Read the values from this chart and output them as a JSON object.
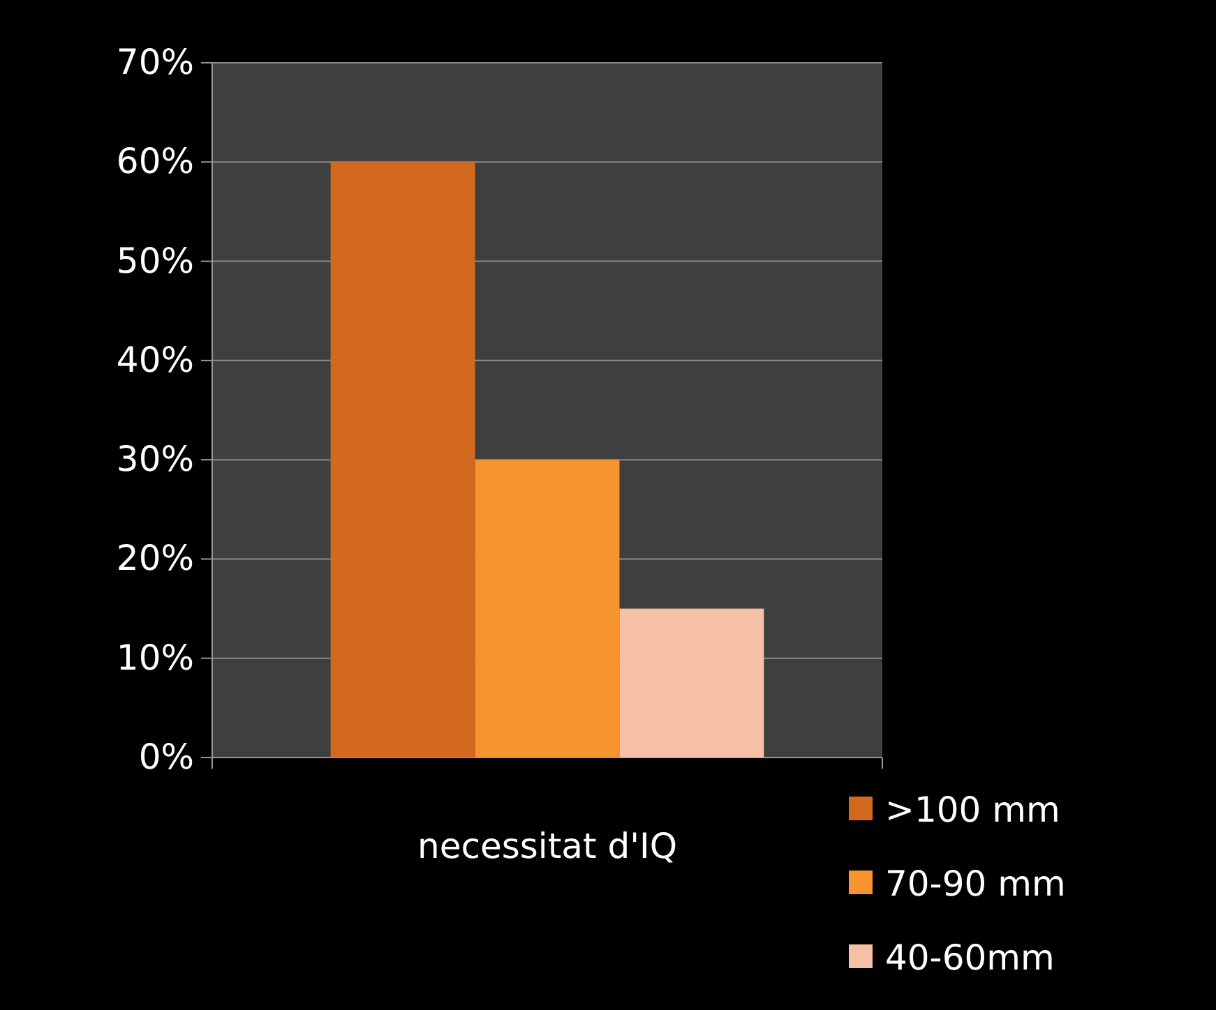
{
  "chart_data": {
    "type": "bar",
    "categories": [
      null,
      null,
      null
    ],
    "xlabel": "necessitat d'IQ",
    "series": [
      {
        "name": ">100 mm",
        "color": "#d2691e",
        "values": [
          60,
          null,
          null
        ]
      },
      {
        "name": "70-90 mm",
        "color": "#f7942d",
        "values": [
          null,
          30,
          null
        ]
      },
      {
        "name": "40-60mm",
        "color": "#f6c1a6",
        "values": [
          null,
          null,
          15
        ]
      }
    ],
    "ylim": [
      0,
      70
    ],
    "yticks": [
      {
        "value": 0,
        "label": "0%"
      },
      {
        "value": 10,
        "label": "10%"
      },
      {
        "value": 20,
        "label": "20%"
      },
      {
        "value": 30,
        "label": "30%"
      },
      {
        "value": 40,
        "label": "40%"
      },
      {
        "value": 50,
        "label": "50%"
      },
      {
        "value": 60,
        "label": "60%"
      },
      {
        "value": 70,
        "label": "70%"
      }
    ],
    "grid": "y",
    "legend": "bottom right"
  }
}
